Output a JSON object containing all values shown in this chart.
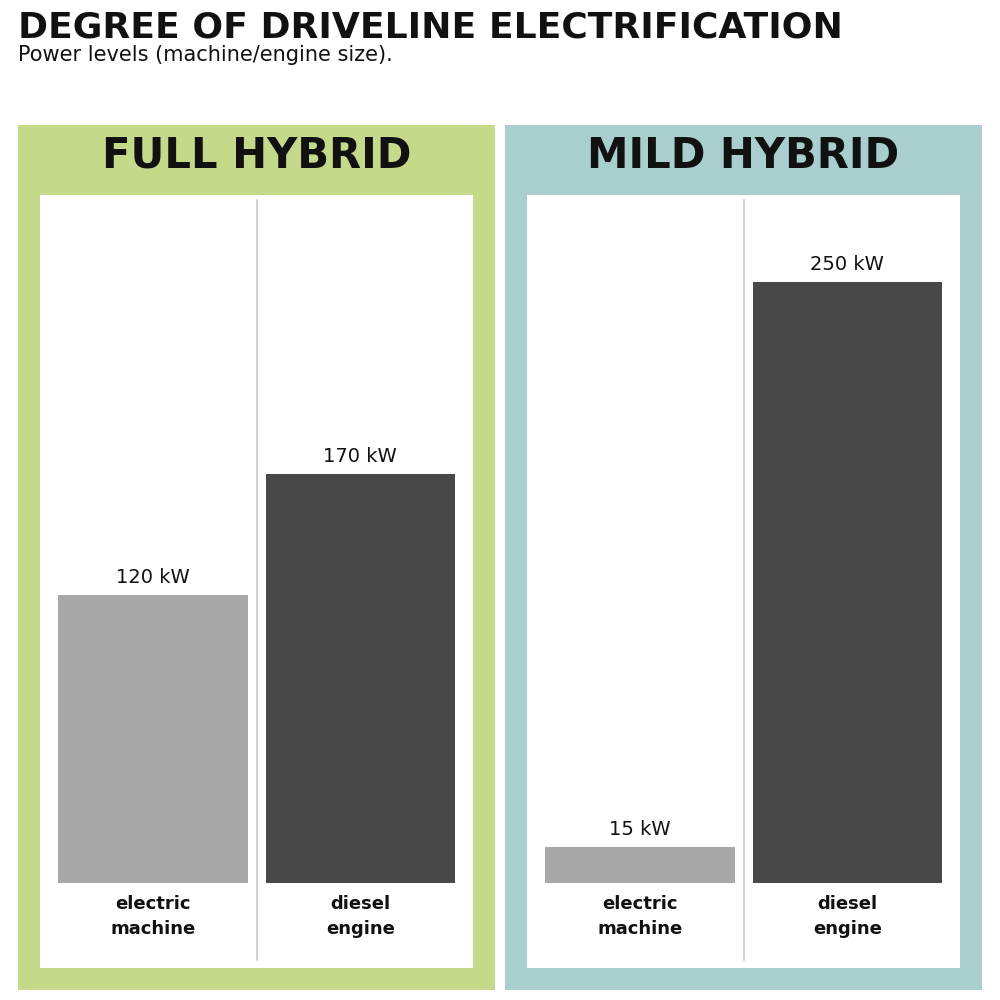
{
  "title": "DEGREE OF DRIVELINE ELECTRIFICATION",
  "subtitle": "Power levels (machine/engine size).",
  "full_hybrid_label": "FULL HYBRID",
  "mild_hybrid_label": "MILD HYBRID",
  "full_hybrid_bg": "#c5d98a",
  "mild_hybrid_bg": "#a8cece",
  "bar_bg": "#ffffff",
  "electric_color": "#a8a8a8",
  "diesel_color": "#484848",
  "full_hybrid_electric_kw": 120,
  "full_hybrid_diesel_kw": 170,
  "mild_hybrid_electric_kw": 15,
  "mild_hybrid_diesel_kw": 250,
  "max_kw": 280,
  "bar_labels": [
    "electric\nmachine",
    "diesel\nengine"
  ],
  "label_color": "#111111",
  "title_color": "#111111",
  "divider_color": "#cccccc"
}
